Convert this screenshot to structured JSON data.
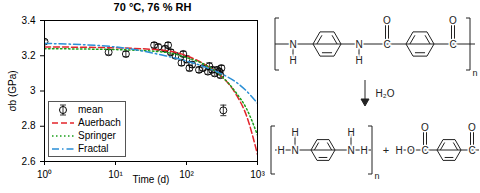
{
  "chart_data": {
    "type": "scatter",
    "title": "70 °C, 76 % RH",
    "xlabel": "Time (d)",
    "ylabel": "σb (GPa)",
    "log": "x",
    "xlim": [
      1,
      1000
    ],
    "xticks": [
      {
        "value": 1,
        "label": "10⁰"
      },
      {
        "value": 10,
        "label": "10¹"
      },
      {
        "value": 100,
        "label": "10²"
      },
      {
        "value": 1000,
        "label": "10³"
      }
    ],
    "ylim": [
      2.6,
      3.4
    ],
    "yticks": [
      2.6,
      2.8,
      3,
      3.2,
      3.4
    ],
    "legend": "lower left",
    "series": [
      {
        "name": "mean",
        "type": "scatter",
        "color": "#000000",
        "marker": "circle",
        "x": [
          1,
          8,
          14,
          35,
          40,
          50,
          55,
          60,
          70,
          85,
          90,
          100,
          110,
          120,
          150,
          170,
          200,
          210,
          230,
          250,
          270,
          290,
          300,
          310,
          330
        ],
        "values": [
          3.28,
          3.22,
          3.21,
          3.26,
          3.25,
          3.24,
          3.26,
          3.22,
          3.2,
          3.16,
          3.21,
          3.18,
          3.13,
          3.15,
          3.12,
          3.13,
          3.11,
          3.14,
          3.12,
          3.1,
          3.12,
          3.11,
          3.09,
          3.13,
          2.89
        ],
        "errors": [
          0.01,
          0.015,
          0.015,
          0.015,
          0.015,
          0.015,
          0.015,
          0.015,
          0.015,
          0.015,
          0.015,
          0.02,
          0.015,
          0.015,
          0.015,
          0.015,
          0.015,
          0.02,
          0.015,
          0.015,
          0.015,
          0.015,
          0.015,
          0.015,
          0.03
        ]
      },
      {
        "name": "Auerbach",
        "type": "line",
        "color": "#e3242b",
        "line_style": "dashed",
        "x": [
          1,
          10,
          50,
          100,
          200,
          300,
          500,
          700,
          1000
        ],
        "values": [
          3.25,
          3.245,
          3.23,
          3.2,
          3.14,
          3.09,
          2.98,
          2.86,
          2.64
        ]
      },
      {
        "name": "Springer",
        "type": "line",
        "color": "#1a9e1a",
        "line_style": "dotted",
        "x": [
          1,
          10,
          50,
          100,
          200,
          300,
          500,
          700,
          1000
        ],
        "values": [
          3.24,
          3.235,
          3.22,
          3.19,
          3.14,
          3.09,
          2.99,
          2.9,
          2.75
        ]
      },
      {
        "name": "Fractal",
        "type": "line",
        "color": "#2b8fd6",
        "line_style": "dashdot",
        "x": [
          1,
          10,
          50,
          100,
          200,
          300,
          500,
          700,
          1000
        ],
        "values": [
          3.27,
          3.25,
          3.2,
          3.17,
          3.13,
          3.1,
          3.05,
          3.0,
          2.93
        ]
      }
    ]
  },
  "structure": {
    "nitrogen": "N",
    "hydrogen": "H",
    "carbon": "C",
    "oxygen": "O",
    "repeat": "n",
    "reagent": "H₂O",
    "plus": "+"
  }
}
